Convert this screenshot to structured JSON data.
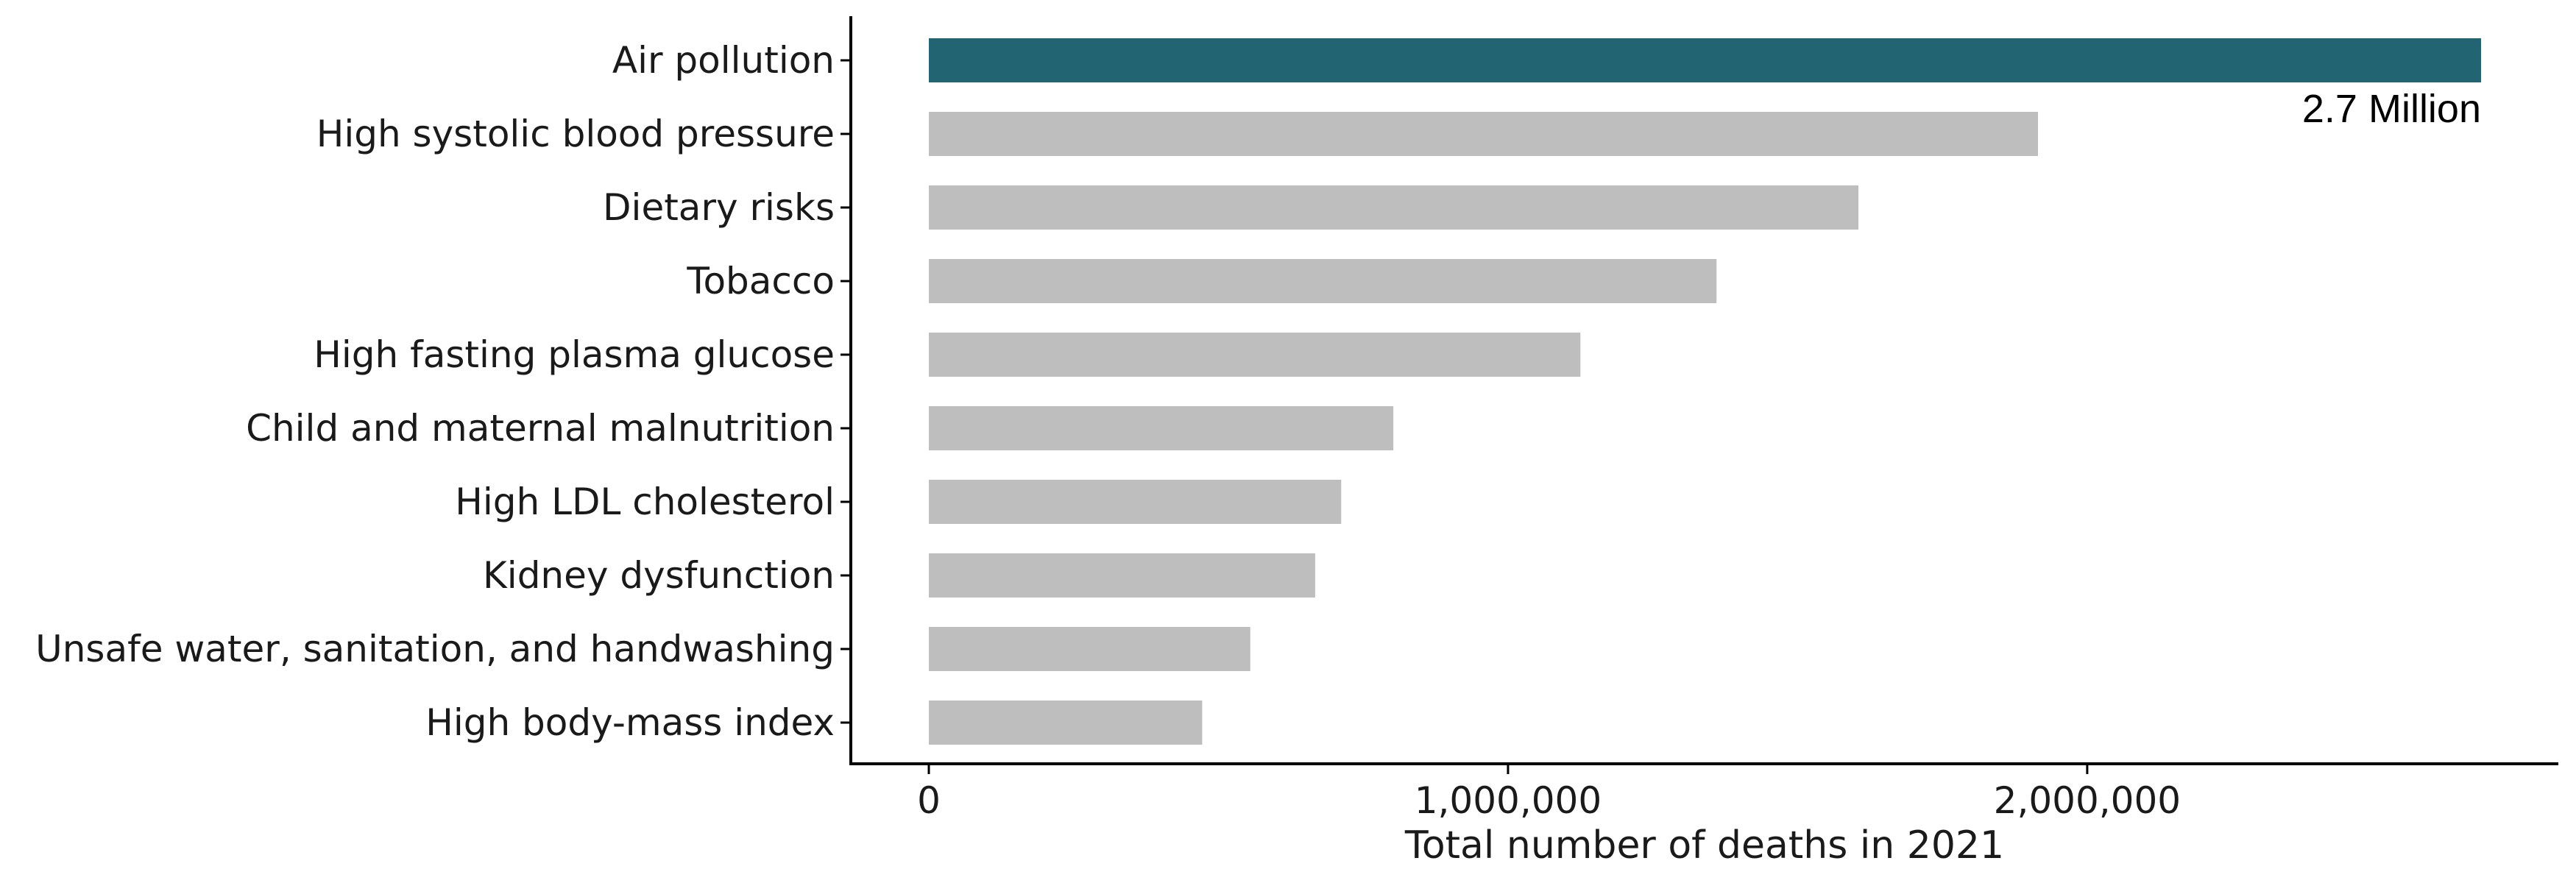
{
  "chart_data": {
    "type": "bar",
    "orientation": "horizontal",
    "categories": [
      "Air pollution",
      "High systolic blood pressure",
      "Dietary risks",
      "Tobacco",
      "High fasting plasma glucose",
      "Child and maternal malnutrition",
      "High LDL cholesterol",
      "Kidney dysfunction",
      "Unsafe water, sanitation, and handwashing",
      "High body-mass index"
    ],
    "values": [
      2680000,
      1915000,
      1605000,
      1360000,
      1125000,
      802000,
      712000,
      667000,
      555000,
      472000
    ],
    "highlight_index": 0,
    "title": "",
    "xlabel": "Total number of deaths in 2021",
    "ylabel": "",
    "xlim": [
      0,
      2800000
    ],
    "xticks": [
      0,
      1000000,
      2000000
    ],
    "xtick_labels": [
      "0",
      "1,000,000",
      "2,000,000"
    ],
    "grid": false,
    "legend": "none",
    "annotation": {
      "text": "2.7 Million",
      "target_index": 0
    },
    "colors": {
      "highlight": "#236473",
      "default": "#bebebe",
      "axis": "#000000"
    }
  }
}
